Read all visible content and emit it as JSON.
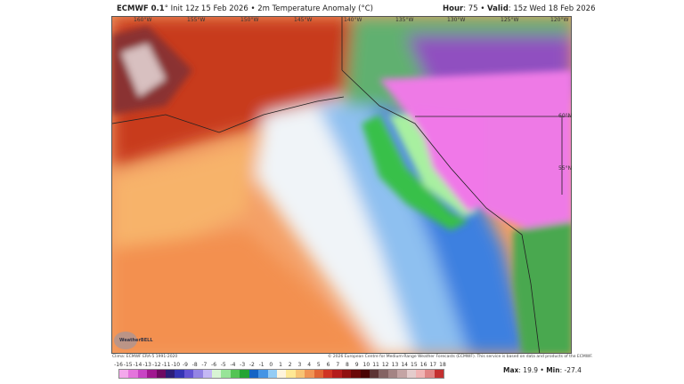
{
  "header": {
    "model": "ECMWF 0.1",
    "deg": "°",
    "init": "Init 12z 15 Feb 2026",
    "sep": "•",
    "field": "2m Temperature Anomaly (°C)",
    "hour_label": "Hour",
    "hour": "75",
    "valid_label": "Valid",
    "valid": "15z Wed 18 Feb 2026"
  },
  "map": {
    "lon_labels": [
      "160°W",
      "155°W",
      "150°W",
      "145°W",
      "140°W",
      "135°W",
      "130°W",
      "125°W",
      "120°W"
    ],
    "lat_labels": [
      "60°N",
      "55°N"
    ],
    "logo": "WeatherBELL"
  },
  "footer": {
    "clima": "Clima: ECMWF ERA-5 1991-2020",
    "copyright": "© 2026 European Centre for Medium-Range Weather Forecasts (ECMWF). This service is based on data and products of the ECMWF."
  },
  "colorbar": {
    "labels": [
      "-16",
      "-15",
      "-14",
      "-13",
      "-12",
      "-11",
      "-10",
      "-9",
      "-8",
      "-7",
      "-6",
      "-5",
      "-4",
      "-3",
      "-2",
      "-1",
      "0",
      "1",
      "2",
      "3",
      "4",
      "5",
      "6",
      "7",
      "8",
      "9",
      "10",
      "11",
      "12",
      "13",
      "14",
      "15",
      "16",
      "17",
      "18"
    ],
    "colors": [
      "#f4a8ec",
      "#e474dc",
      "#c844c4",
      "#a01890",
      "#6e0a62",
      "#2c1e78",
      "#3434b4",
      "#6454d4",
      "#9484e4",
      "#c4b8f4",
      "#d8f4d4",
      "#98e498",
      "#54c454",
      "#24a434",
      "#1464c4",
      "#4494e4",
      "#94ccf4",
      "#fff4dc",
      "#ffe894",
      "#f8c474",
      "#f09454",
      "#e06434",
      "#d03424",
      "#b41c1c",
      "#901010",
      "#6a0808",
      "#4a0404",
      "#5c3434",
      "#846464",
      "#a48484",
      "#c4a4a4",
      "#e4cccc",
      "#f0b4b4",
      "#e08484",
      "#c43030"
    ]
  },
  "stats": {
    "max_label": "Max",
    "max": "19.9",
    "min_label": "Min",
    "min": "-27.4"
  }
}
